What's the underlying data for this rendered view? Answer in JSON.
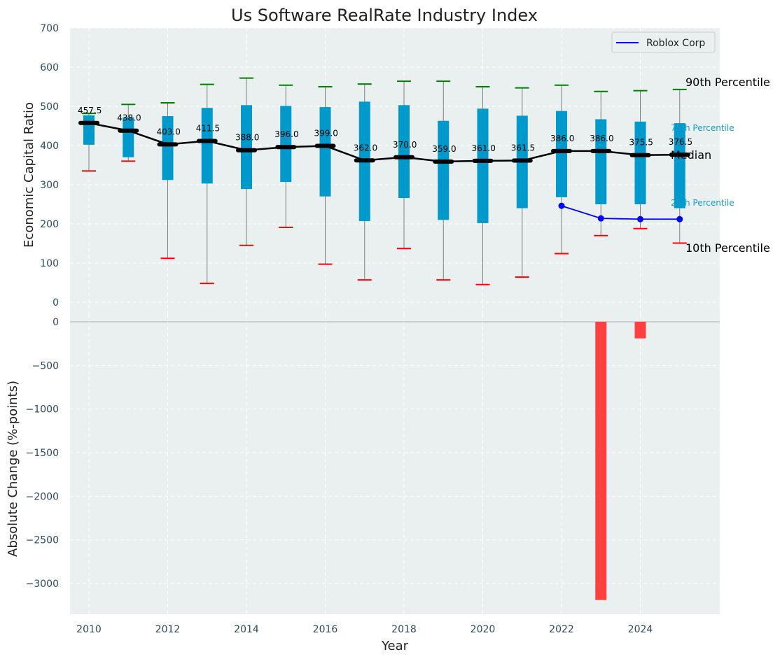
{
  "chart_data": [
    {
      "type": "box",
      "title": "Us Software RealRate Industry Index",
      "xlabel": "",
      "ylabel": "Economic Capital Ratio",
      "ylim": [
        0,
        700
      ],
      "yticks": [
        0,
        100,
        200,
        300,
        400,
        500,
        600,
        700
      ],
      "grid": true,
      "legend": {
        "position": "top-right",
        "entries": [
          "Roblox Corp"
        ]
      },
      "years": [
        2010,
        2011,
        2012,
        2013,
        2014,
        2015,
        2016,
        2017,
        2018,
        2019,
        2020,
        2021,
        2022,
        2023,
        2024,
        2025
      ],
      "p10": [
        335,
        360,
        112,
        48,
        145,
        191,
        97,
        57,
        137,
        57,
        45,
        64,
        124,
        170,
        188,
        151
      ],
      "p25": [
        402,
        370,
        312,
        303,
        289,
        307,
        270,
        207,
        266,
        210,
        202,
        240,
        268,
        250,
        250,
        240
      ],
      "median": [
        457.5,
        438.0,
        403.0,
        411.5,
        388.0,
        396.0,
        399.0,
        362.0,
        370.0,
        359.0,
        361.0,
        361.5,
        386.0,
        386.0,
        375.5,
        376.5
      ],
      "median_labels": [
        "457.5",
        "438.0",
        "403.0",
        "411.5",
        "388.0",
        "396.0",
        "399.0",
        "362.0",
        "370.0",
        "359.0",
        "361.0",
        "361.5",
        "386.0",
        "386.0",
        "375.5",
        "376.5"
      ],
      "p75": [
        477,
        472,
        475,
        496,
        503,
        501,
        498,
        512,
        503,
        463,
        494,
        476,
        488,
        467,
        461,
        457
      ],
      "p90": [
        482,
        505,
        509,
        556,
        572,
        554,
        550,
        557,
        564,
        564,
        550,
        547,
        554,
        538,
        540,
        543
      ],
      "whisker_max": [
        482,
        505,
        509,
        556,
        572,
        554,
        550,
        557,
        564,
        564,
        550,
        547,
        554,
        538,
        540,
        543
      ],
      "series": [
        {
          "name": "Roblox Corp",
          "x": [
            2022,
            2023,
            2024,
            2025
          ],
          "values": [
            246,
            214,
            212,
            212
          ]
        }
      ],
      "annotations": {
        "p90": "90th Percentile",
        "p75": "75th Percentile",
        "median": "Median",
        "p25": "25th Percentile",
        "p10": "10th Percentile"
      },
      "colors": {
        "box": "#0099cc",
        "median_line": "#000000",
        "p90_cap": "#008000",
        "p10_cap": "#ff0000",
        "roblox": "#0000ff",
        "background": "#eaf0f0",
        "whisker": "#808080"
      }
    },
    {
      "type": "bar",
      "xlabel": "Year",
      "ylabel": "Absolute Change (%-points)",
      "ylim": [
        -3350,
        0
      ],
      "yticks": [
        0,
        -500,
        -1000,
        -1500,
        -2000,
        -2500,
        -3000
      ],
      "ytick_labels": [
        "0",
        "−500",
        "−1000",
        "−1500",
        "−2000",
        "−2500",
        "−3000"
      ],
      "xticks": [
        2010,
        2012,
        2014,
        2016,
        2018,
        2020,
        2022,
        2024
      ],
      "grid": true,
      "x": [
        2023,
        2024
      ],
      "values": [
        -3190,
        -190
      ],
      "bar_color": "#ff4040"
    }
  ]
}
